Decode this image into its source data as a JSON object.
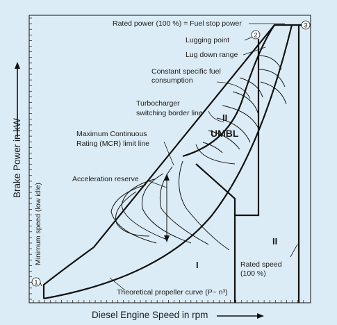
{
  "y_axis_title": "Brake Power in kW",
  "x_axis_title": "Diesel Engine Speed in rpm",
  "labels": {
    "rated_power": "Rated power (100 %) = Fuel stop power",
    "lugging_point": "Lugging point",
    "lug_down_range": "Lug down range",
    "sfc_line1": "Constant specific fuel",
    "sfc_line2": "consumption",
    "turbo_line1": "Turbocharger",
    "turbo_line2": "switching border line",
    "mcr_line1": "Maximum Continuous",
    "mcr_line2": "Rating (MCR) limit line",
    "accel_reserve": "Acceleration reserve",
    "min_speed": "Minimum speed (low idle)",
    "rated_speed_line1": "Rated speed",
    "rated_speed_line2": "(100 %)",
    "propeller_curve": "Theoretical propeller curve (P~ n³)"
  },
  "zones": {
    "zone_ii_upper": "II",
    "umbl": "UMBL",
    "zone_i": "I",
    "zone_ii_right": "II"
  },
  "markers": {
    "m1": "1",
    "m2": "2",
    "m3": "3"
  }
}
